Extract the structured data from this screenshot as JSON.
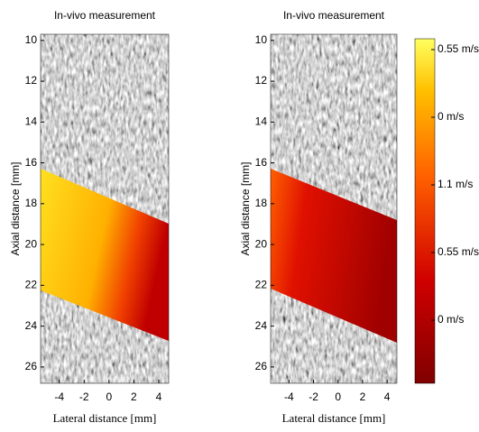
{
  "chart_data": [
    {
      "type": "heatmap",
      "title": "In-vivo measurement",
      "xlabel": "Lateral distance [mm]",
      "ylabel": "Axial distance [mm]",
      "xlim": [
        -5.5,
        4.8
      ],
      "ylim": [
        9.7,
        26.8
      ],
      "xticks": [
        -4,
        -2,
        0,
        2,
        4
      ],
      "yticks": [
        10,
        12,
        14,
        16,
        18,
        20,
        22,
        24,
        26
      ]
    },
    {
      "type": "heatmap",
      "title": "In-vivo measurement",
      "xlabel": "Lateral distance [mm]",
      "ylabel": "Axial distance [mm]",
      "xlim": [
        -5.5,
        4.8
      ],
      "ylim": [
        9.7,
        26.8
      ],
      "xticks": [
        -4,
        -2,
        0,
        2,
        4
      ],
      "yticks": [
        10,
        12,
        14,
        16,
        18,
        20,
        22,
        24,
        26
      ],
      "colorbar_labels": [
        "0.55 m/s",
        "0 m/s",
        "1.1 m/s",
        "0.55 m/s",
        "0 m/s"
      ]
    }
  ]
}
